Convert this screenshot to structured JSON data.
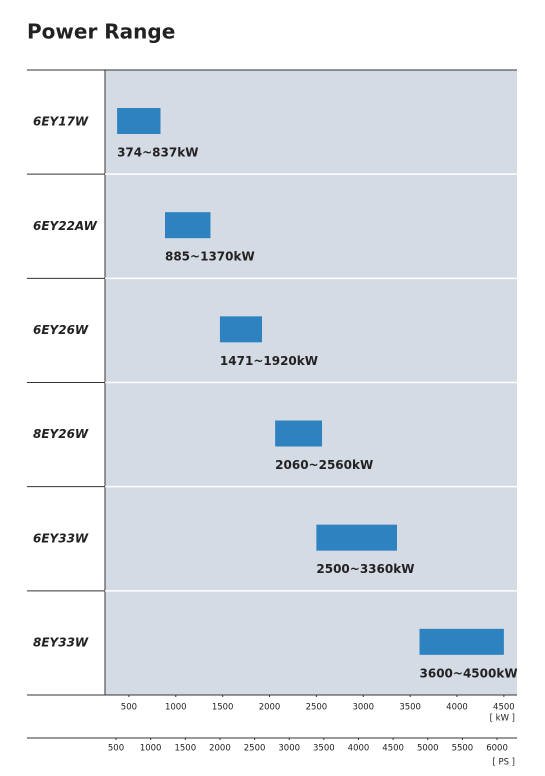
{
  "chart_data": {
    "type": "range-bar",
    "title": "Power Range",
    "categories": [
      "6EY17W",
      "6EY22AW",
      "6EY26W",
      "8EY26W",
      "6EY33W",
      "8EY33W"
    ],
    "low": [
      374,
      885,
      1471,
      2060,
      2500,
      3600
    ],
    "high": [
      837,
      1370,
      1920,
      2560,
      3360,
      4500
    ],
    "value_labels": [
      "374~837kW",
      "885~1370kW",
      "1471~1920kW",
      "2060~2560kW",
      "2500~3360kW",
      "3600~4500kW"
    ],
    "color": "#2f82c0",
    "xlim": [
      245,
      4640
    ],
    "xticks": [
      500,
      1000,
      1500,
      2000,
      2500,
      3000,
      3500,
      4000,
      4500
    ],
    "x_unit": "[ kW ]",
    "x2lim": [
      341,
      6288
    ],
    "x2ticks": [
      500,
      1000,
      1500,
      2000,
      2500,
      3000,
      3500,
      4000,
      4500,
      5000,
      5500,
      6000
    ],
    "x2_unit": "[ PS ]"
  }
}
